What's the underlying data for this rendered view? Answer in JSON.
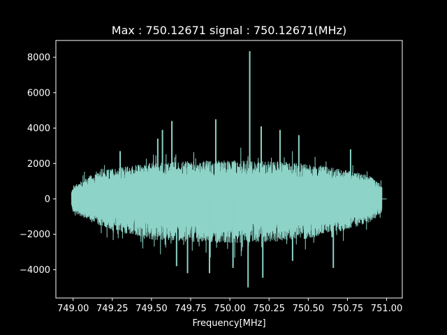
{
  "chart_data": {
    "type": "line",
    "title": "Max : 750.12671 signal : 750.12671(MHz)",
    "xlabel": "Frequency[MHz]",
    "ylabel": "",
    "xlim": [
      748.89,
      751.1
    ],
    "ylim": [
      -5600,
      8950
    ],
    "x_ticks": [
      749.0,
      749.25,
      749.5,
      749.75,
      750.0,
      750.25,
      750.5,
      750.75,
      751.0
    ],
    "x_tick_labels": [
      "749.00",
      "749.25",
      "749.50",
      "749.75",
      "750.00",
      "750.25",
      "750.50",
      "750.75",
      "751.00"
    ],
    "y_ticks": [
      -4000,
      -2000,
      0,
      2000,
      4000,
      6000,
      8000
    ],
    "y_tick_labels": [
      "−4000",
      "−2000",
      "0",
      "2000",
      "4000",
      "6000",
      "8000"
    ],
    "grid": false,
    "colors": {
      "background": "#000000",
      "line": "#8dd3c7",
      "axes": "#ffffff"
    },
    "series": [
      {
        "envelope": {
          "x": [
            748.99,
            749.0,
            749.1,
            749.25,
            749.5,
            749.75,
            750.0,
            750.25,
            750.5,
            750.75,
            750.9,
            750.97
          ],
          "upper": [
            400,
            750,
            1300,
            1750,
            2050,
            2150,
            2200,
            2150,
            2000,
            1650,
            1300,
            800
          ],
          "lower": [
            -400,
            -750,
            -1250,
            -1800,
            -2300,
            -2450,
            -2500,
            -2450,
            -2250,
            -1750,
            -1300,
            -800
          ]
        },
        "spikes": [
          {
            "x": 750.12671,
            "y": 8350
          },
          {
            "x": 750.116,
            "y": -5000
          },
          {
            "x": 750.21,
            "y": -4450
          },
          {
            "x": 749.57,
            "y": 3900
          },
          {
            "x": 749.63,
            "y": 4400
          },
          {
            "x": 749.91,
            "y": 4500
          },
          {
            "x": 750.2,
            "y": 4100
          },
          {
            "x": 749.87,
            "y": -4200
          },
          {
            "x": 749.73,
            "y": -4200
          },
          {
            "x": 749.54,
            "y": 3400
          },
          {
            "x": 750.32,
            "y": 3900
          },
          {
            "x": 750.44,
            "y": 3600
          },
          {
            "x": 749.66,
            "y": -3800
          },
          {
            "x": 750.02,
            "y": -3900
          },
          {
            "x": 750.66,
            "y": -3900
          },
          {
            "x": 750.77,
            "y": 2800
          },
          {
            "x": 749.3,
            "y": 2700
          },
          {
            "x": 750.4,
            "y": -3500
          }
        ],
        "flat_tail": {
          "x": [
            750.97,
            751.0
          ],
          "y": 0
        }
      }
    ]
  }
}
